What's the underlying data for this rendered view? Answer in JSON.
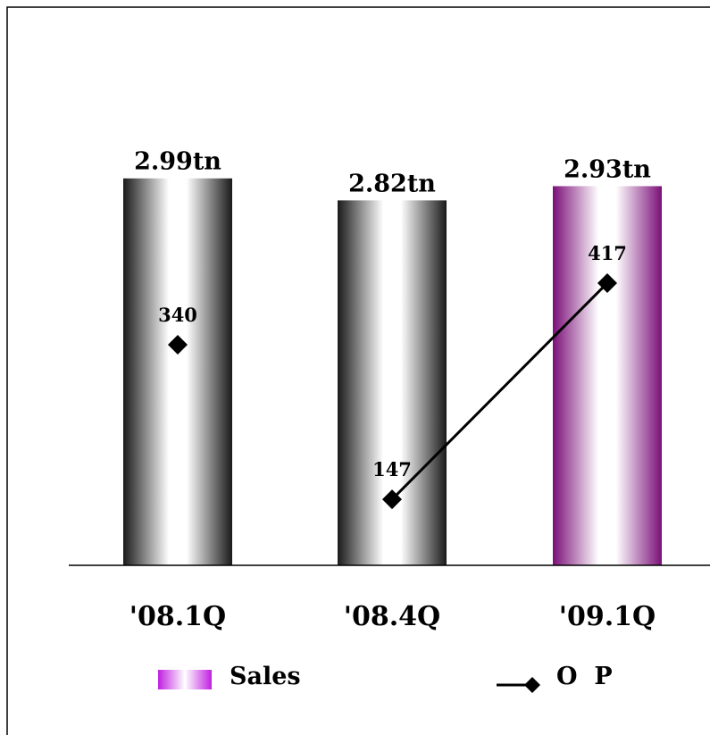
{
  "chart_data": {
    "type": "bar",
    "categories": [
      "'08.1Q",
      "'08.4Q",
      "'09.1Q"
    ],
    "series": [
      {
        "name": "Sales",
        "type": "bar",
        "values": [
          2.99,
          2.82,
          2.93
        ],
        "labels": [
          "2.99tn",
          "2.82tn",
          "2.93tn"
        ]
      },
      {
        "name": "O  P",
        "type": "line",
        "values": [
          340,
          147,
          417
        ],
        "labels": [
          "340",
          "147",
          "417"
        ],
        "connected": [
          false,
          true,
          true
        ]
      }
    ],
    "legend": [
      "Sales",
      "O  P"
    ],
    "legend_position": "bottom",
    "grid": false,
    "colors": {
      "bar_dark": "#1a1a1a",
      "bar_light": "#ffffff",
      "highlight_dark": "#7a0f78",
      "highlight_light": "#ffffff",
      "legend_swatch": "#c020e0",
      "line": "#000000"
    }
  }
}
